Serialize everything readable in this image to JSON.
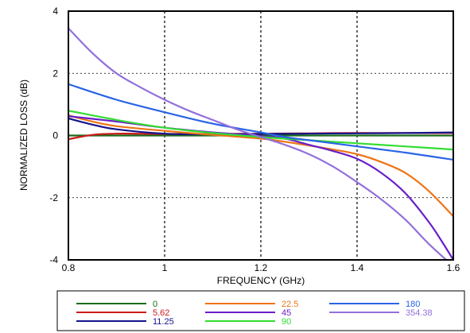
{
  "chart_data": {
    "type": "line",
    "title": "",
    "xlabel": "FREQUENCY (GHz)",
    "ylabel": "NORMALIZED LOSS (dB)",
    "xlim": [
      0.8,
      1.6
    ],
    "ylim": [
      -4,
      4
    ],
    "x_ticks": [
      "0.8",
      "1",
      "1.2",
      "1.4",
      "1.6"
    ],
    "y_ticks": [
      "4",
      "2",
      "0",
      "-2",
      "-4"
    ],
    "grid": "dotted at major ticks",
    "legend_placement": "bottom, outside plot, boxed, 3 columns",
    "series": [
      {
        "name": "0",
        "color": "#1a6b1a",
        "x": [
          0.8,
          0.9,
          1.0,
          1.1,
          1.2,
          1.3,
          1.4,
          1.5,
          1.6
        ],
        "y": [
          0.0,
          0.0,
          0.0,
          0.0,
          0.0,
          0.0,
          0.0,
          0.0,
          0.0
        ]
      },
      {
        "name": "5.62",
        "color": "#cc1a1a",
        "x": [
          0.8,
          0.85,
          0.9,
          1.0,
          1.1,
          1.2,
          1.3,
          1.4,
          1.5,
          1.6
        ],
        "y": [
          -0.12,
          0.02,
          0.06,
          0.05,
          0.05,
          0.06,
          0.07,
          0.08,
          0.08,
          0.08
        ]
      },
      {
        "name": "11.25",
        "color": "#14148c",
        "x": [
          0.8,
          0.85,
          0.9,
          1.0,
          1.1,
          1.2,
          1.3,
          1.4,
          1.5,
          1.6
        ],
        "y": [
          0.55,
          0.35,
          0.2,
          0.06,
          0.04,
          0.05,
          0.06,
          0.07,
          0.08,
          0.1
        ]
      },
      {
        "name": "22.5",
        "color": "#ee7417",
        "x": [
          0.8,
          0.85,
          0.9,
          1.0,
          1.1,
          1.2,
          1.25,
          1.3,
          1.35,
          1.4,
          1.45,
          1.5,
          1.55,
          1.6
        ],
        "y": [
          0.65,
          0.45,
          0.3,
          0.15,
          0.02,
          -0.1,
          -0.2,
          -0.32,
          -0.45,
          -0.6,
          -0.85,
          -1.2,
          -1.8,
          -2.6
        ]
      },
      {
        "name": "45",
        "color": "#6a1ec8",
        "x": [
          0.8,
          0.9,
          1.0,
          1.1,
          1.2,
          1.25,
          1.3,
          1.35,
          1.4,
          1.45,
          1.5,
          1.55,
          1.58,
          1.6
        ],
        "y": [
          0.62,
          0.45,
          0.25,
          0.1,
          -0.02,
          -0.1,
          -0.3,
          -0.5,
          -0.75,
          -1.2,
          -1.85,
          -2.8,
          -3.5,
          -4.0
        ]
      },
      {
        "name": "90",
        "color": "#33dd33",
        "x": [
          0.8,
          0.9,
          1.0,
          1.1,
          1.2,
          1.3,
          1.4,
          1.5,
          1.6
        ],
        "y": [
          0.8,
          0.5,
          0.25,
          0.08,
          -0.05,
          -0.15,
          -0.25,
          -0.35,
          -0.45
        ]
      },
      {
        "name": "180",
        "color": "#2a64e6",
        "x": [
          0.8,
          0.9,
          1.0,
          1.1,
          1.2,
          1.25,
          1.3,
          1.4,
          1.5,
          1.6
        ],
        "y": [
          1.65,
          1.15,
          0.75,
          0.38,
          0.1,
          -0.05,
          -0.15,
          -0.35,
          -0.55,
          -0.78
        ]
      },
      {
        "name": "354.38",
        "color": "#9370db",
        "x": [
          0.8,
          0.85,
          0.9,
          0.95,
          1.0,
          1.05,
          1.1,
          1.15,
          1.2,
          1.25,
          1.3,
          1.35,
          1.4,
          1.45,
          1.5,
          1.55,
          1.6
        ],
        "y": [
          3.45,
          2.65,
          2.0,
          1.55,
          1.15,
          0.8,
          0.5,
          0.2,
          -0.05,
          -0.3,
          -0.6,
          -1.0,
          -1.5,
          -2.05,
          -2.7,
          -3.5,
          -4.2
        ]
      }
    ]
  }
}
